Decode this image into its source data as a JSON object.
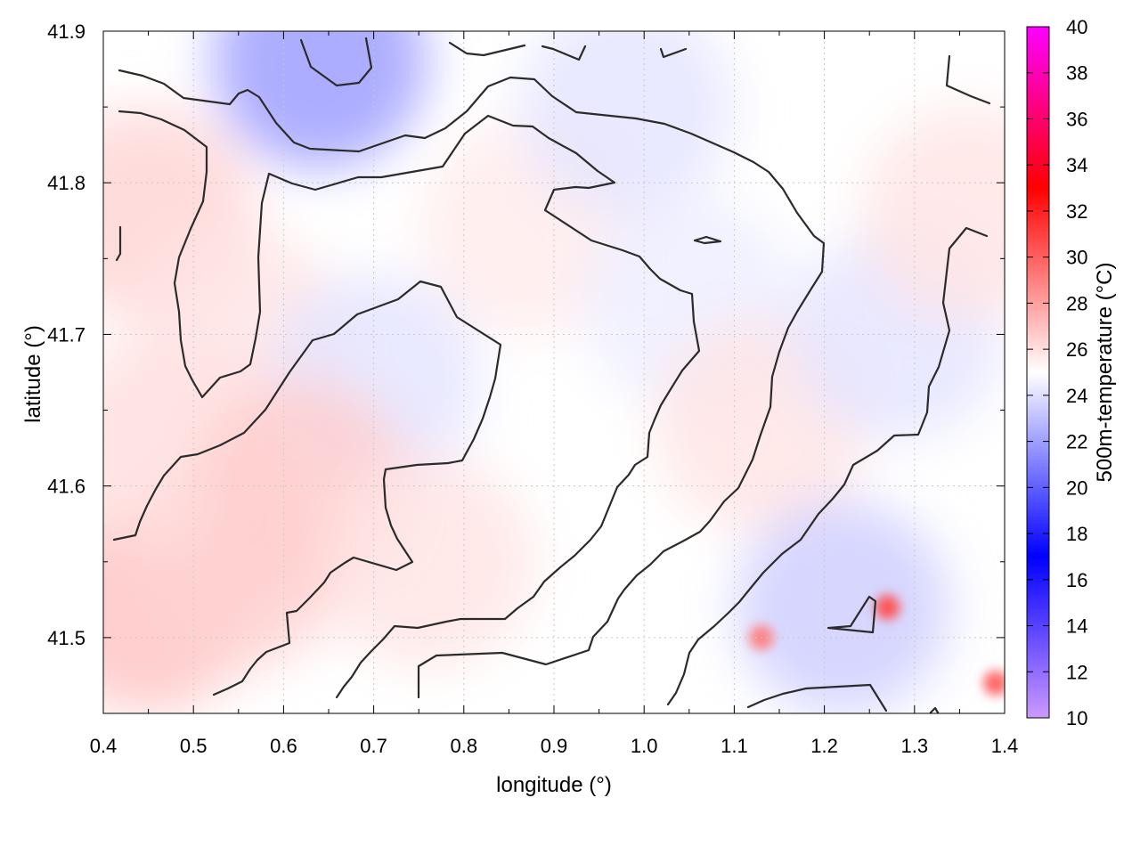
{
  "chart_data": {
    "type": "heatmap",
    "title": "",
    "xlabel": "longitude (°)",
    "ylabel": "latitude (°)",
    "colorbar_label": "500m-temperature (°C)",
    "xlim": [
      0.4,
      1.4
    ],
    "ylim": [
      41.45,
      41.9
    ],
    "clim": [
      10,
      40
    ],
    "xticks": [
      "0.4",
      "0.5",
      "0.6",
      "0.7",
      "0.8",
      "0.9",
      "1.0",
      "1.1",
      "1.2",
      "1.3",
      "1.4"
    ],
    "yticks": [
      "41.5",
      "41.6",
      "41.7",
      "41.8",
      "41.9"
    ],
    "cticks": [
      "10",
      "12",
      "14",
      "16",
      "18",
      "20",
      "22",
      "24",
      "26",
      "28",
      "30",
      "32",
      "34",
      "36",
      "38",
      "40"
    ],
    "grid": true,
    "colormap": [
      {
        "value": 10,
        "color": "#cc99ff"
      },
      {
        "value": 17,
        "color": "#0000ff"
      },
      {
        "value": 25,
        "color": "#ffffff"
      },
      {
        "value": 33,
        "color": "#ff0000"
      },
      {
        "value": 40,
        "color": "#ff00ff"
      }
    ],
    "regions": [
      {
        "lon": 0.45,
        "lat": 41.52,
        "value": 26.8
      },
      {
        "lon": 0.55,
        "lat": 41.55,
        "value": 26.4
      },
      {
        "lon": 0.47,
        "lat": 41.63,
        "value": 26.0
      },
      {
        "lon": 0.45,
        "lat": 41.78,
        "value": 26.3
      },
      {
        "lon": 0.55,
        "lat": 41.7,
        "value": 25.8
      },
      {
        "lon": 0.64,
        "lat": 41.88,
        "value": 22.0
      },
      {
        "lon": 0.7,
        "lat": 41.67,
        "value": 24.2
      },
      {
        "lon": 0.87,
        "lat": 41.77,
        "value": 25.6
      },
      {
        "lon": 0.98,
        "lat": 41.85,
        "value": 24.2
      },
      {
        "lon": 1.05,
        "lat": 41.72,
        "value": 24.5
      },
      {
        "lon": 1.13,
        "lat": 41.64,
        "value": 25.8
      },
      {
        "lon": 1.28,
        "lat": 41.7,
        "value": 24.2
      },
      {
        "lon": 1.36,
        "lat": 41.78,
        "value": 25.8
      },
      {
        "lon": 1.22,
        "lat": 41.52,
        "value": 23.5
      },
      {
        "lon": 1.27,
        "lat": 41.52,
        "value": 30.5
      },
      {
        "lon": 1.13,
        "lat": 41.5,
        "value": 29.0
      },
      {
        "lon": 1.39,
        "lat": 41.47,
        "value": 30.0
      },
      {
        "lon": 0.62,
        "lat": 41.6,
        "value": 26.5
      },
      {
        "lon": 0.76,
        "lat": 41.55,
        "value": 25.8
      }
    ]
  }
}
